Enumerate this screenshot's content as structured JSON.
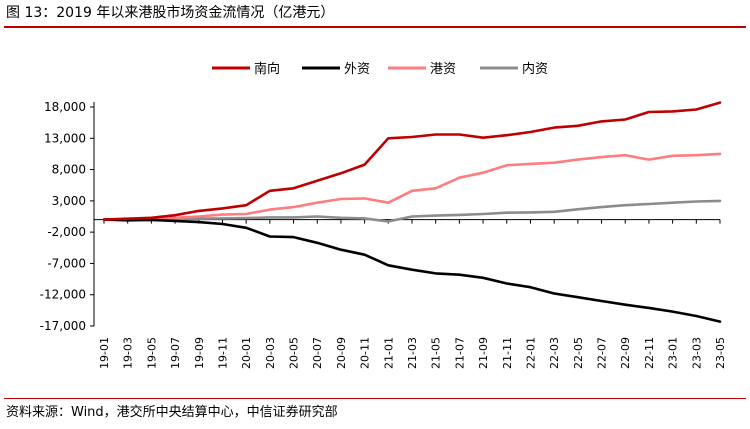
{
  "figure": {
    "title": "图 13：2019 年以来港股市场资金流情况（亿港元）",
    "source": "资料来源：Wind，港交所中央结算中心，中信证券研究部"
  },
  "chart_data": {
    "type": "line",
    "title": "",
    "xlabel": "",
    "ylabel": "",
    "ylim": [
      -17000,
      18000
    ],
    "yticks": [
      -17000,
      -12000,
      -7000,
      -2000,
      3000,
      8000,
      13000,
      18000
    ],
    "ytick_labels": [
      "-17,000",
      "-12,000",
      "-7,000",
      "-2,000",
      "3,000",
      "8,000",
      "13,000",
      "18,000"
    ],
    "x_tick_labels": [
      "19-01",
      "19-03",
      "19-05",
      "19-07",
      "19-09",
      "19-11",
      "20-01",
      "20-03",
      "20-05",
      "20-07",
      "20-09",
      "20-11",
      "21-01",
      "21-03",
      "21-05",
      "21-07",
      "21-09",
      "21-11",
      "22-01",
      "22-03",
      "22-05",
      "22-07",
      "22-09",
      "22-11",
      "23-01",
      "23-03",
      "23-05"
    ],
    "legend_position": "top-center",
    "grid": false,
    "series": [
      {
        "name": "南向",
        "color": "#c00000",
        "values": [
          0,
          150,
          300,
          700,
          1400,
          1800,
          2300,
          4600,
          5000,
          6200,
          7400,
          8800,
          13000,
          13200,
          13600,
          13600,
          13100,
          13500,
          14000,
          14700,
          15000,
          15700,
          16000,
          17200,
          17300,
          17600,
          18700
        ]
      },
      {
        "name": "外资",
        "color": "#000000",
        "values": [
          0,
          -100,
          -50,
          -200,
          -400,
          -700,
          -1300,
          -2700,
          -2800,
          -3700,
          -4800,
          -5600,
          -7300,
          -8000,
          -8600,
          -8800,
          -9300,
          -10200,
          -10800,
          -11800,
          -12400,
          -13000,
          -13600,
          -14100,
          -14700,
          -15400,
          -16300
        ]
      },
      {
        "name": "港资",
        "color": "#ff7c80",
        "values": [
          0,
          50,
          100,
          300,
          500,
          800,
          900,
          1600,
          2000,
          2700,
          3300,
          3400,
          2700,
          4600,
          5000,
          6700,
          7500,
          8700,
          8900,
          9100,
          9600,
          10000,
          10300,
          9600,
          10200,
          10300,
          10500
        ]
      },
      {
        "name": "内资",
        "color": "#8c8c8c",
        "values": [
          0,
          0,
          20,
          80,
          150,
          200,
          250,
          350,
          350,
          500,
          300,
          200,
          -300,
          500,
          650,
          750,
          900,
          1100,
          1150,
          1250,
          1650,
          2000,
          2300,
          2500,
          2700,
          2900,
          3000
        ]
      }
    ]
  }
}
